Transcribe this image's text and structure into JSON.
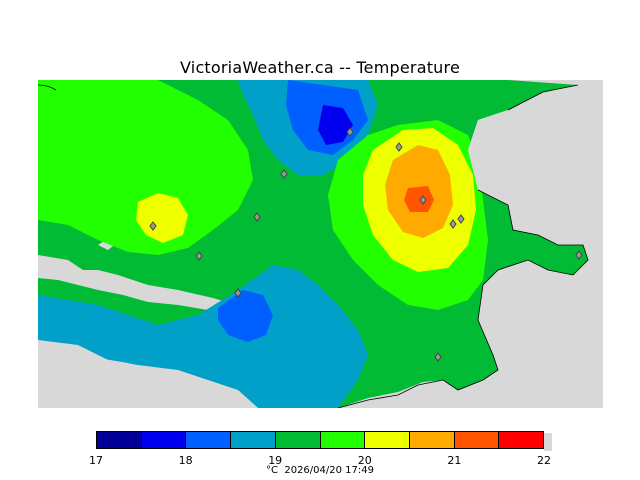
{
  "title": "VictoriaWeather.ca -- Temperature",
  "legend": {
    "ticks": [
      "17",
      "18",
      "19",
      "20",
      "21",
      "22"
    ],
    "colors": [
      "#000099",
      "#0000ee",
      "#0060ff",
      "#00a0c8",
      "#00bb33",
      "#22ff00",
      "#eeff00",
      "#ffaa00",
      "#ff5500",
      "#ff0000"
    ]
  },
  "footer": {
    "unit": "°C",
    "datetime": "2026/04/20 17:49"
  },
  "map": {
    "land_color": "#00bb33",
    "water_color": "#d8d8d8",
    "station_marker": "diamond-marker"
  }
}
